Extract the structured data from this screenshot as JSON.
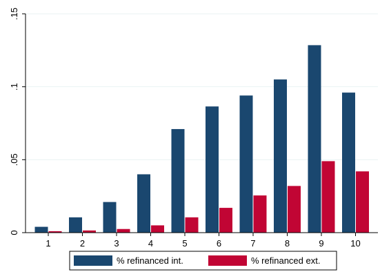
{
  "chart_data": {
    "type": "bar",
    "categories": [
      "1",
      "2",
      "3",
      "4",
      "5",
      "6",
      "7",
      "8",
      "9",
      "10"
    ],
    "series": [
      {
        "name": "% refinanced int.",
        "color": "#1a476f",
        "values": [
          0.004,
          0.0105,
          0.021,
          0.04,
          0.071,
          0.0865,
          0.094,
          0.105,
          0.1285,
          0.096
        ]
      },
      {
        "name": "% refinanced ext.",
        "color": "#c10534",
        "values": [
          0.001,
          0.0015,
          0.0025,
          0.005,
          0.0105,
          0.017,
          0.0255,
          0.032,
          0.049,
          0.042
        ]
      }
    ],
    "yticks": [
      0,
      0.05,
      0.1,
      0.15
    ],
    "ytick_labels": [
      "0",
      ".05",
      ".1",
      ".15"
    ],
    "ylim": [
      0,
      0.15
    ],
    "grid": true,
    "legend_position": "bottom"
  }
}
